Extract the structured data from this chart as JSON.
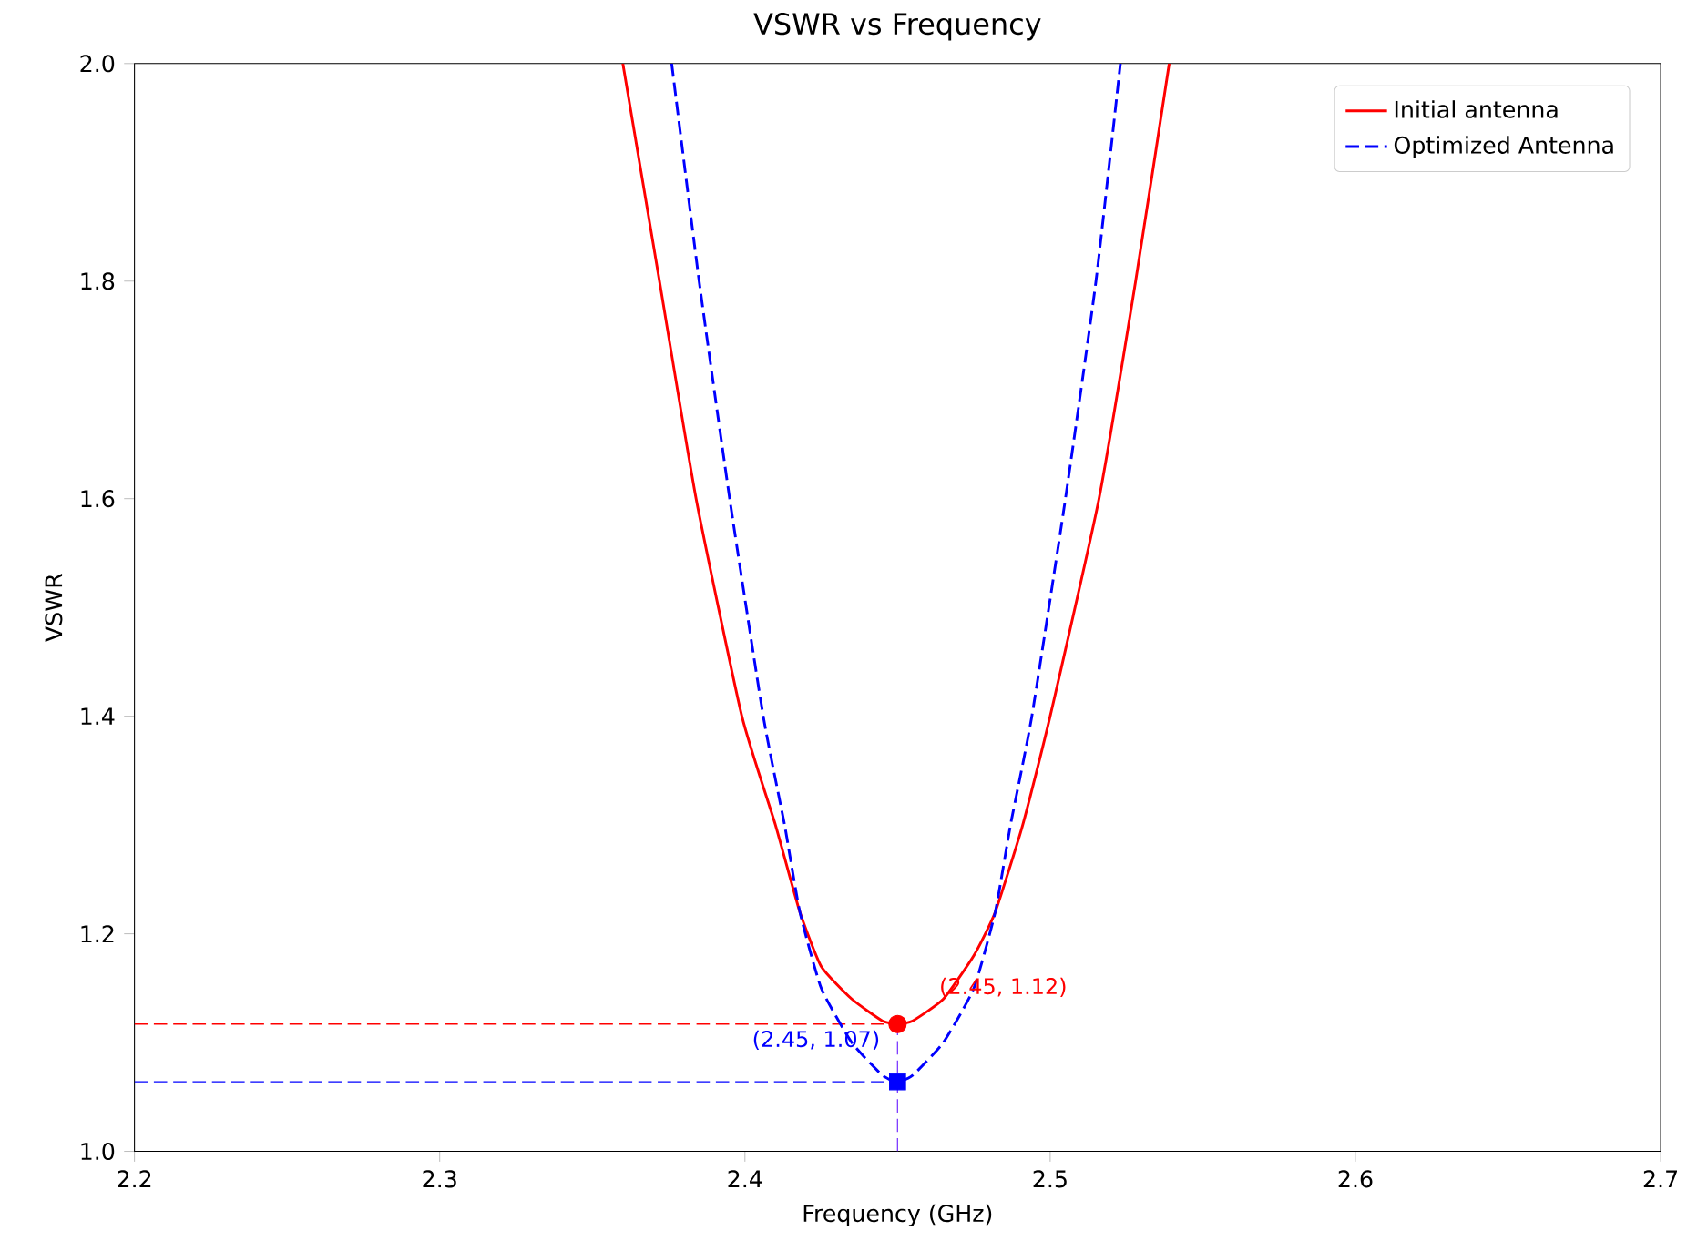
{
  "chart_data": {
    "type": "line",
    "title": "VSWR vs Frequency",
    "xlabel": "Frequency (GHz)",
    "ylabel": "VSWR",
    "xlim": [
      2.2,
      2.7
    ],
    "ylim": [
      1.0,
      2.0
    ],
    "xticks": [
      2.2,
      2.3,
      2.4,
      2.5,
      2.6,
      2.7
    ],
    "yticks": [
      {
        "value": 1.0,
        "label": "1.0"
      },
      {
        "value": 1.2,
        "label": "1.2"
      },
      {
        "value": 1.4,
        "label": "1.4"
      },
      {
        "value": 1.6,
        "label": "1.6"
      },
      {
        "value": 1.8,
        "label": "1.8"
      },
      {
        "value": 2.0,
        "label": "2.0"
      }
    ],
    "legend": "top right",
    "series": [
      {
        "name": "Initial antenna",
        "color": "#ff0000",
        "line_style": "solid",
        "x": [
          2.36,
          2.372,
          2.384,
          2.399,
          2.41,
          2.418,
          2.425,
          2.435,
          2.445,
          2.45,
          2.455,
          2.465,
          2.475,
          2.482,
          2.491,
          2.5,
          2.516,
          2.528,
          2.539
        ],
        "values": [
          2.0,
          1.8,
          1.6,
          1.4,
          1.3,
          1.22,
          1.17,
          1.14,
          1.12,
          1.117,
          1.12,
          1.14,
          1.18,
          1.22,
          1.3,
          1.4,
          1.6,
          1.8,
          2.0
        ]
      },
      {
        "name": "Optimized Antenna",
        "color": "#0000ff",
        "line_style": "dashed",
        "x": [
          2.376,
          2.385,
          2.395,
          2.406,
          2.413,
          2.418,
          2.425,
          2.435,
          2.445,
          2.45,
          2.455,
          2.465,
          2.475,
          2.482,
          2.487,
          2.494,
          2.505,
          2.515,
          2.523
        ],
        "values": [
          2.0,
          1.8,
          1.6,
          1.4,
          1.3,
          1.22,
          1.15,
          1.1,
          1.07,
          1.064,
          1.07,
          1.1,
          1.15,
          1.22,
          1.3,
          1.4,
          1.6,
          1.8,
          2.0
        ]
      },
      {
        "type": "scatter",
        "marker": "circle",
        "color": "#ff0000",
        "x": [
          2.45
        ],
        "values": [
          1.117
        ]
      },
      {
        "type": "scatter",
        "marker": "square",
        "color": "#0000ff",
        "x": [
          2.45
        ],
        "values": [
          1.064
        ]
      }
    ],
    "ref_lines": [
      {
        "axis": "y",
        "value": 1.117,
        "color": "#ff0000",
        "line_style": "dashed"
      },
      {
        "axis": "y",
        "value": 1.064,
        "color": "#0000ff",
        "line_style": "dashed"
      },
      {
        "axis": "x",
        "value": 2.45,
        "color": "#8040ff",
        "line_style": "dashed"
      }
    ],
    "annotations": [
      {
        "text": "(2.45, 1.12)",
        "x": 2.45,
        "y": 1.117
      },
      {
        "text": "(2.45, 1.07)",
        "x": 2.45,
        "y": 1.064
      }
    ]
  }
}
